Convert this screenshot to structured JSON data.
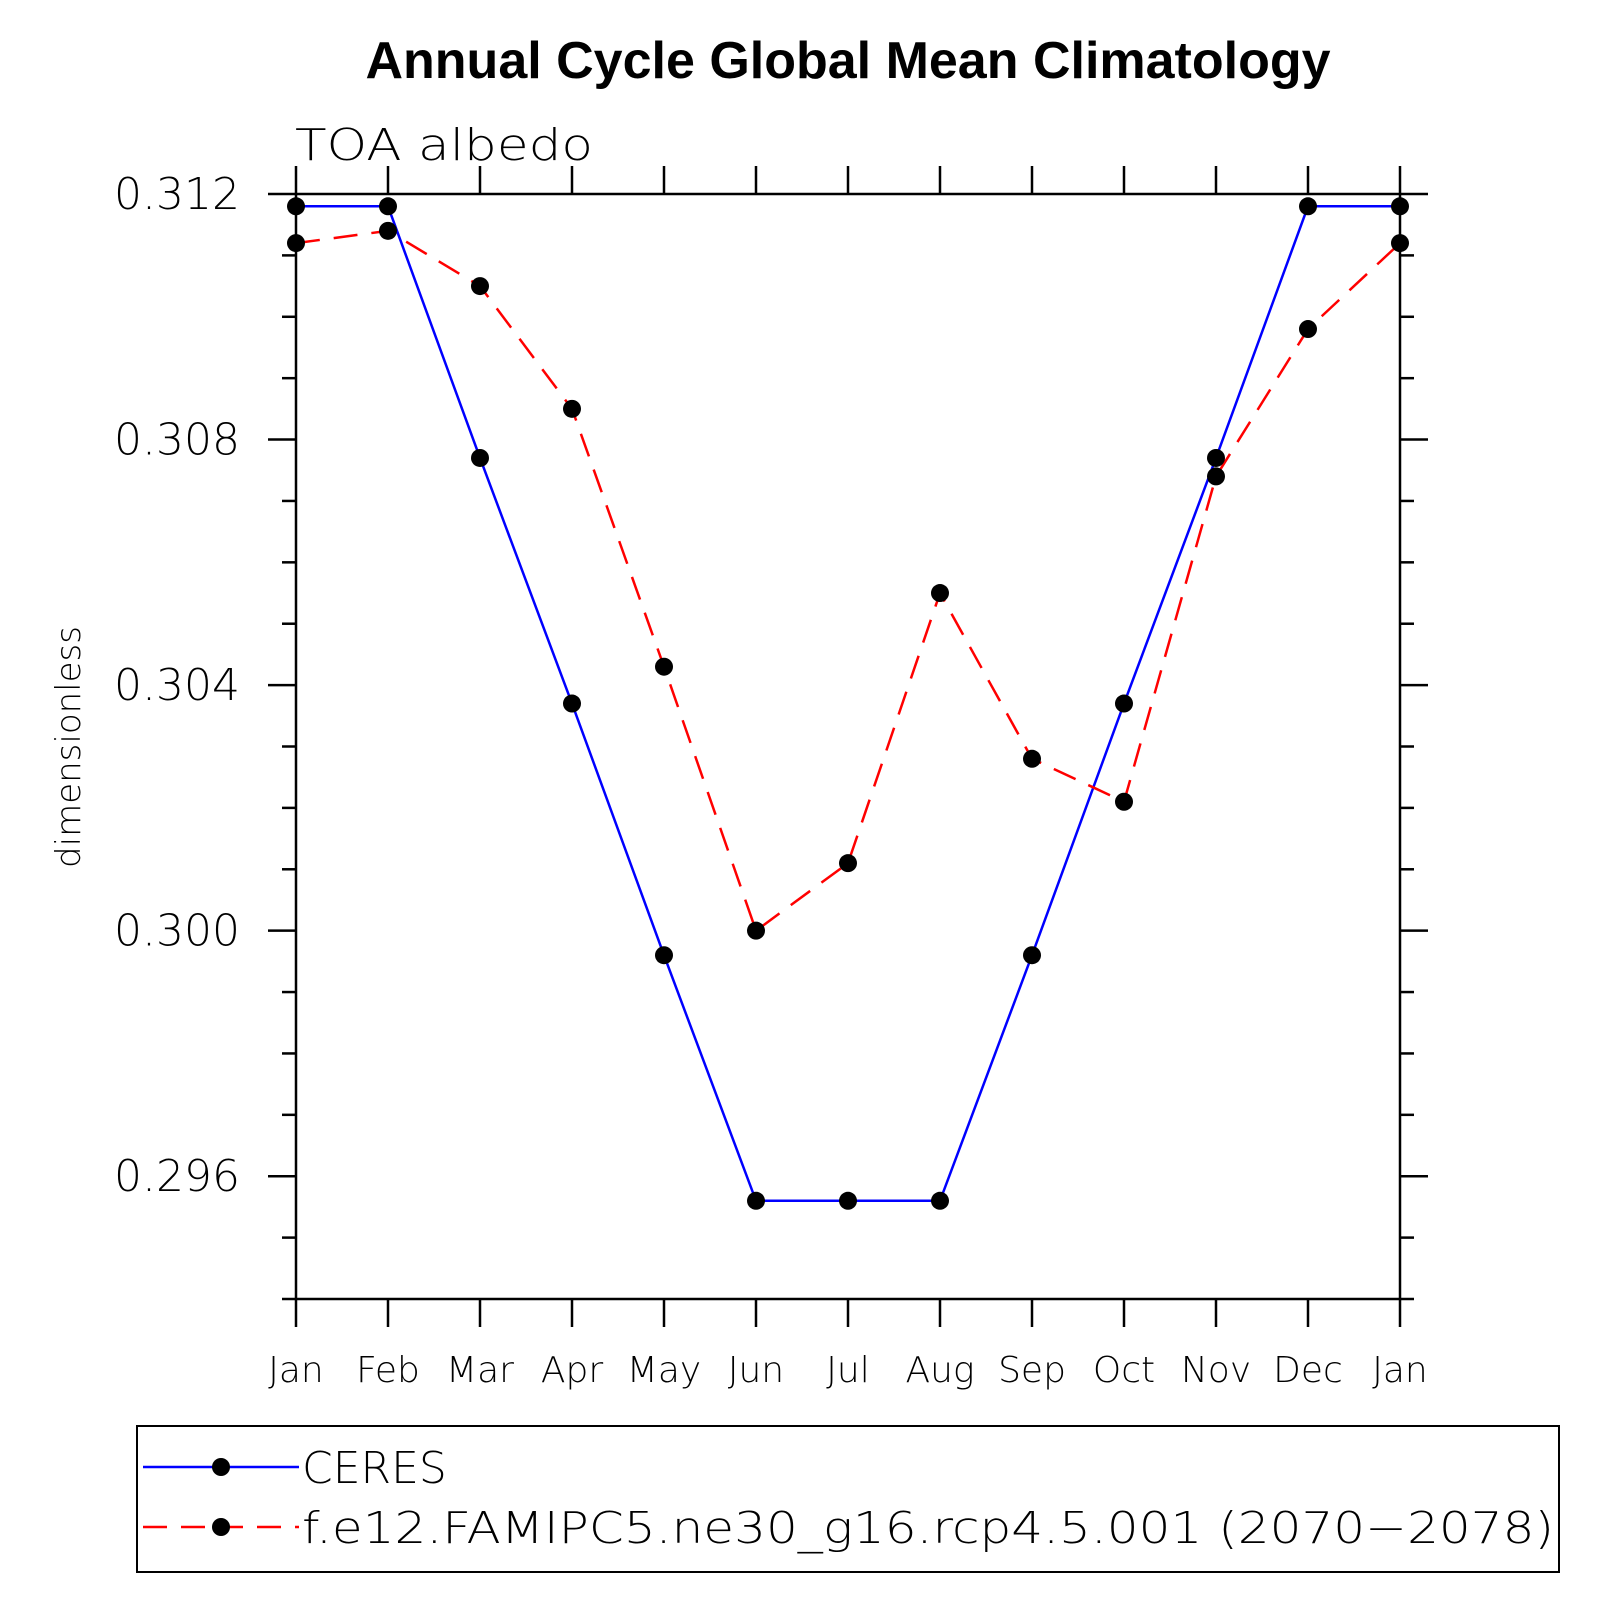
{
  "chart_data": {
    "type": "line",
    "title": "Annual Cycle Global Mean Climatology",
    "subtitle": "TOA albedo",
    "xlabel": "",
    "ylabel": "dimensionless",
    "categories": [
      "Jan",
      "Feb",
      "Mar",
      "Apr",
      "May",
      "Jun",
      "Jul",
      "Aug",
      "Sep",
      "Oct",
      "Nov",
      "Dec",
      "Jan"
    ],
    "ylim": [
      0.294,
      0.312
    ],
    "yticks": [
      0.296,
      0.3,
      0.304,
      0.308,
      0.312
    ],
    "ytick_labels": [
      "0.296",
      "0.300",
      "0.304",
      "0.308",
      "0.312"
    ],
    "grid": false,
    "legend_position": "bottom",
    "series": [
      {
        "name": "CERES",
        "color": "#0000ff",
        "dash": "solid",
        "marker": "filled-circle",
        "values": [
          0.3118,
          0.3118,
          0.3077,
          0.3037,
          0.2996,
          0.2956,
          0.2956,
          0.2956,
          0.2996,
          0.3037,
          0.3077,
          0.3118,
          0.3118
        ]
      },
      {
        "name": "f.e12.FAMIPC5.ne30_g16.rcp4.5.001 (2070−2078)",
        "color": "#ff0000",
        "dash": "dashed",
        "marker": "filled-circle",
        "values": [
          0.3112,
          0.3114,
          0.3105,
          0.3085,
          0.3043,
          0.3,
          0.3011,
          0.3055,
          0.3028,
          0.3021,
          0.3074,
          0.3098,
          0.3112
        ]
      }
    ]
  }
}
